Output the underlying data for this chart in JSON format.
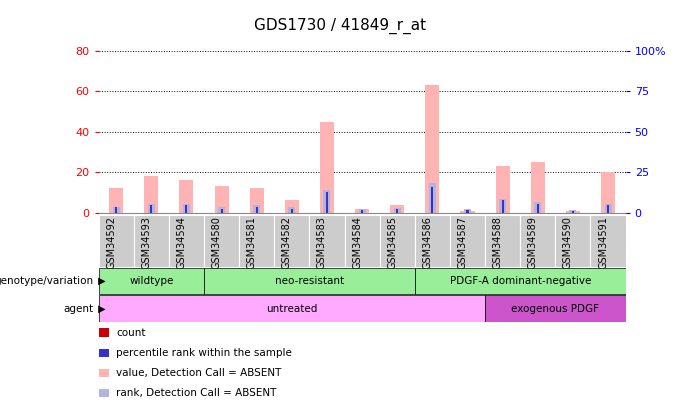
{
  "title": "GDS1730 / 41849_r_at",
  "samples": [
    "GSM34592",
    "GSM34593",
    "GSM34594",
    "GSM34580",
    "GSM34581",
    "GSM34582",
    "GSM34583",
    "GSM34584",
    "GSM34585",
    "GSM34586",
    "GSM34587",
    "GSM34588",
    "GSM34589",
    "GSM34590",
    "GSM34591"
  ],
  "value_absent": [
    12,
    18,
    16,
    13,
    12,
    6,
    45,
    2,
    4,
    63,
    1,
    23,
    25,
    1,
    20
  ],
  "rank_absent": [
    3.5,
    5.5,
    5.5,
    3.5,
    4.5,
    3.5,
    14,
    2,
    3,
    18,
    2,
    8.5,
    6.5,
    1.5,
    5.5
  ],
  "count": [
    2,
    3,
    2,
    2,
    2,
    1,
    2,
    1,
    1,
    2,
    1,
    2,
    3,
    1,
    2
  ],
  "percentile_rank": [
    3.5,
    4.5,
    4.5,
    2.5,
    3.5,
    2.5,
    13,
    1.5,
    2.5,
    16,
    1.5,
    7.5,
    5.5,
    1.2,
    4.5
  ],
  "ylim_left": [
    0,
    80
  ],
  "yticks_left": [
    0,
    20,
    40,
    60,
    80
  ],
  "yticks_right": [
    0,
    25,
    50,
    75,
    100
  ],
  "ytick_labels_right": [
    "0",
    "25",
    "50",
    "75",
    "100%"
  ],
  "color_count": "#cc0000",
  "color_percentile": "#3333cc",
  "color_value_absent": "#ffb3b3",
  "color_rank_absent": "#b3b3dd",
  "geno_spans": [
    [
      0,
      3,
      "wildtype"
    ],
    [
      3,
      9,
      "neo-resistant"
    ],
    [
      9,
      15,
      "PDGF-A dominant-negative"
    ]
  ],
  "agent_spans": [
    [
      0,
      11,
      "untreated"
    ],
    [
      11,
      15,
      "exogenous PDGF"
    ]
  ],
  "geno_color": "#99ee99",
  "agent_untreated_color": "#ffaaff",
  "agent_exogenous_color": "#cc55cc",
  "legend_labels": [
    "count",
    "percentile rank within the sample",
    "value, Detection Call = ABSENT",
    "rank, Detection Call = ABSENT"
  ],
  "legend_colors": [
    "#cc0000",
    "#3333cc",
    "#ffb3b3",
    "#b3b3dd"
  ],
  "bg_color": "#ffffff",
  "xtick_bg_color": "#cccccc"
}
